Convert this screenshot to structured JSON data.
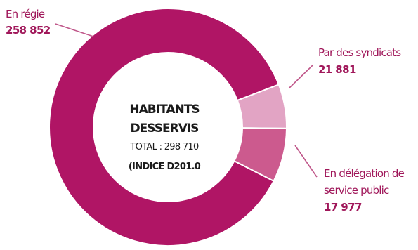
{
  "chart_data": {
    "type": "pie",
    "variant": "donut",
    "total_value": 298710,
    "center": {
      "title_line1": "HABITANTS",
      "title_line2": "DESSERVIS",
      "total": "TOTAL : 298 710",
      "indice": "(INDICE D201.0"
    },
    "slices": [
      {
        "name": "En régie",
        "name_lines": [
          "En régie"
        ],
        "value": 258852,
        "value_label": "258 852",
        "color": "#b01565"
      },
      {
        "name": "Par des syndicats",
        "name_lines": [
          "Par des syndicats"
        ],
        "value": 21881,
        "value_label": "21 881",
        "color": "#cc5a8e"
      },
      {
        "name": "En délégation de service public",
        "name_lines": [
          "En délégation de",
          "service public"
        ],
        "value": 17977,
        "value_label": "17 977",
        "color": "#e2a4c4"
      }
    ],
    "colors": {
      "label_text": "#a0175a",
      "leader_line": "#c0578a",
      "center_text": "#1a1a1a",
      "separator": "#ffffff"
    }
  }
}
